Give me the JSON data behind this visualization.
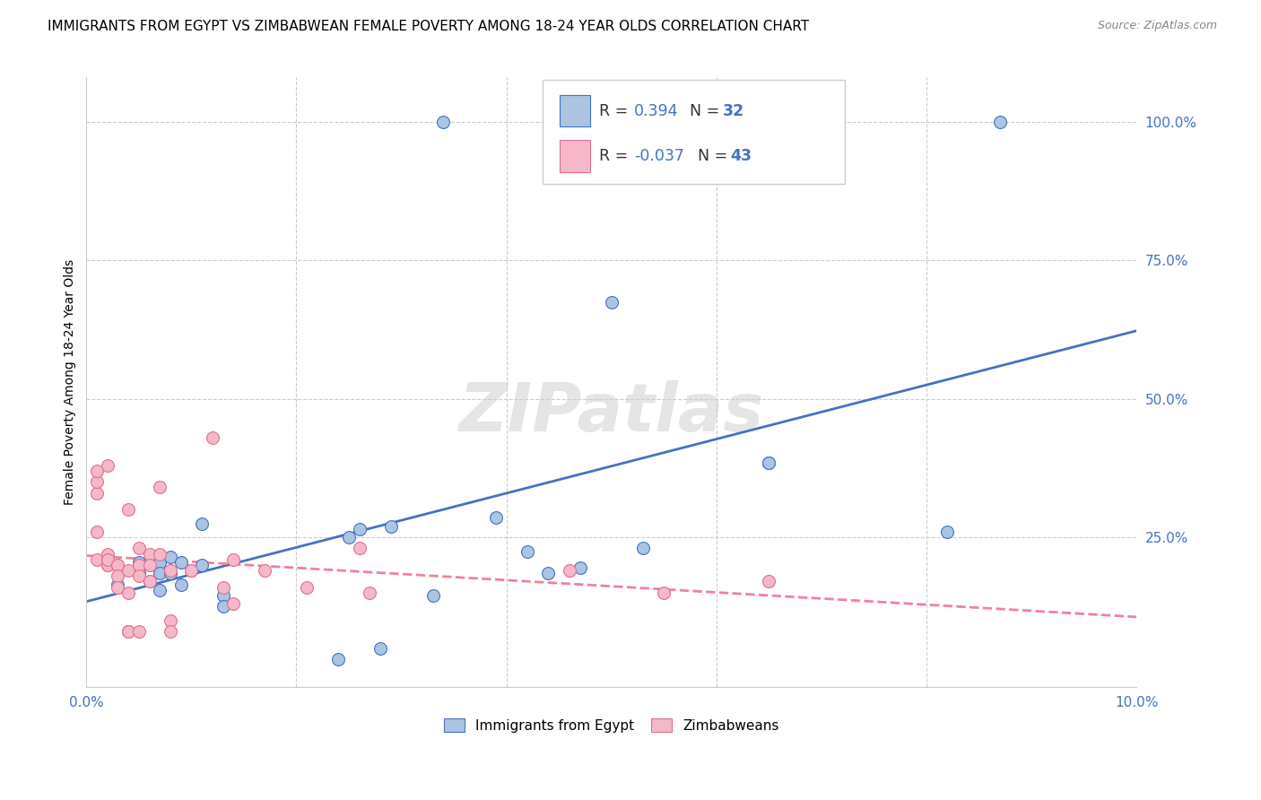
{
  "title": "IMMIGRANTS FROM EGYPT VS ZIMBABWEAN FEMALE POVERTY AMONG 18-24 YEAR OLDS CORRELATION CHART",
  "source": "Source: ZipAtlas.com",
  "ylabel": "Female Poverty Among 18-24 Year Olds",
  "xlim": [
    0.0,
    0.1
  ],
  "ylim": [
    -0.02,
    1.08
  ],
  "egypt_color": "#aac4e2",
  "zimb_color": "#f4b8c8",
  "egypt_line_color": "#4472c4",
  "zimb_line_color": "#f48099",
  "background_color": "#ffffff",
  "grid_color": "#cccccc",
  "egypt_x": [
    0.003,
    0.005,
    0.005,
    0.006,
    0.006,
    0.007,
    0.007,
    0.007,
    0.008,
    0.008,
    0.009,
    0.009,
    0.01,
    0.011,
    0.011,
    0.013,
    0.013,
    0.024,
    0.025,
    0.026,
    0.028,
    0.029,
    0.033,
    0.039,
    0.042,
    0.044,
    0.047,
    0.05,
    0.053,
    0.065,
    0.065,
    0.082,
    0.034,
    0.087
  ],
  "egypt_y": [
    0.165,
    0.185,
    0.205,
    0.2,
    0.17,
    0.205,
    0.185,
    0.155,
    0.215,
    0.185,
    0.205,
    0.165,
    0.19,
    0.275,
    0.2,
    0.145,
    0.125,
    0.03,
    0.25,
    0.265,
    0.05,
    0.27,
    0.145,
    0.285,
    0.225,
    0.185,
    0.195,
    0.675,
    0.23,
    0.385,
    0.385,
    0.26,
    1.0,
    1.0
  ],
  "zimb_x": [
    0.001,
    0.001,
    0.001,
    0.001,
    0.001,
    0.002,
    0.002,
    0.002,
    0.002,
    0.002,
    0.003,
    0.003,
    0.003,
    0.003,
    0.004,
    0.004,
    0.004,
    0.004,
    0.004,
    0.005,
    0.005,
    0.005,
    0.005,
    0.006,
    0.006,
    0.006,
    0.007,
    0.007,
    0.008,
    0.008,
    0.008,
    0.01,
    0.012,
    0.013,
    0.014,
    0.014,
    0.017,
    0.021,
    0.026,
    0.027,
    0.046,
    0.055,
    0.065
  ],
  "zimb_y": [
    0.33,
    0.35,
    0.37,
    0.26,
    0.21,
    0.38,
    0.22,
    0.2,
    0.2,
    0.21,
    0.2,
    0.2,
    0.18,
    0.16,
    0.3,
    0.19,
    0.15,
    0.08,
    0.08,
    0.23,
    0.2,
    0.18,
    0.08,
    0.22,
    0.2,
    0.17,
    0.34,
    0.22,
    0.19,
    0.1,
    0.08,
    0.19,
    0.43,
    0.16,
    0.21,
    0.13,
    0.19,
    0.16,
    0.23,
    0.15,
    0.19,
    0.15,
    0.17
  ],
  "title_fontsize": 11,
  "axis_label_fontsize": 10,
  "tick_fontsize": 11
}
